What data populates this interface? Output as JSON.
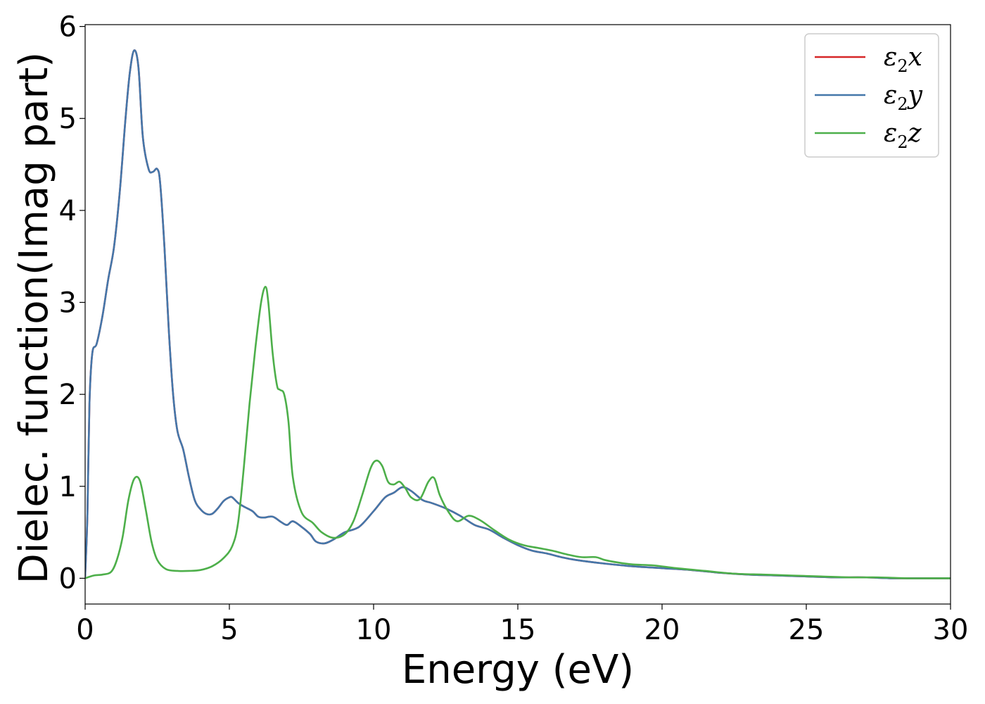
{
  "chart_data": {
    "type": "line",
    "title": "",
    "xlabel": "Energy (eV)",
    "ylabel": "Dielec. function(Imag part)",
    "xlim": [
      0,
      30
    ],
    "ylim": [
      -0.28,
      6.02
    ],
    "xticks": [
      0,
      5,
      10,
      15,
      20,
      25,
      30
    ],
    "yticks": [
      0,
      1,
      2,
      3,
      4,
      5,
      6
    ],
    "grid": false,
    "legend_position": "top-right",
    "series": [
      {
        "name": "ε₂x",
        "legend_base": "ε",
        "legend_sub": "2",
        "legend_var": "x",
        "color": "#d62728",
        "x": [
          0,
          0.08,
          0.15,
          0.25,
          0.4,
          0.6,
          0.8,
          1.0,
          1.2,
          1.4,
          1.55,
          1.7,
          1.85,
          2.0,
          2.2,
          2.35,
          2.5,
          2.6,
          2.75,
          2.9,
          3.05,
          3.2,
          3.4,
          3.6,
          3.8,
          4.0,
          4.2,
          4.4,
          4.6,
          4.8,
          5.0,
          5.1,
          5.3,
          5.5,
          5.8,
          6.0,
          6.2,
          6.5,
          6.8,
          7.0,
          7.2,
          7.5,
          7.8,
          8.0,
          8.3,
          8.6,
          9.0,
          9.5,
          10.0,
          10.4,
          10.7,
          11.0,
          11.3,
          11.7,
          12.0,
          12.5,
          13.0,
          13.5,
          14.0,
          14.5,
          15.0,
          15.5,
          16.0,
          16.5,
          17.0,
          18.0,
          19.0,
          20.0,
          21.0,
          22.0,
          23.0,
          24.0,
          25.0,
          26.0,
          27.0,
          28.0,
          29.0,
          30.0
        ],
        "y": [
          0.02,
          0.7,
          1.9,
          2.45,
          2.55,
          2.85,
          3.25,
          3.6,
          4.2,
          5.0,
          5.5,
          5.74,
          5.55,
          4.8,
          4.45,
          4.42,
          4.45,
          4.3,
          3.6,
          2.7,
          2.0,
          1.6,
          1.4,
          1.1,
          0.85,
          0.75,
          0.7,
          0.7,
          0.76,
          0.84,
          0.88,
          0.88,
          0.82,
          0.78,
          0.73,
          0.67,
          0.66,
          0.67,
          0.61,
          0.58,
          0.62,
          0.56,
          0.48,
          0.4,
          0.38,
          0.42,
          0.5,
          0.56,
          0.73,
          0.88,
          0.93,
          0.99,
          0.95,
          0.85,
          0.82,
          0.76,
          0.68,
          0.58,
          0.53,
          0.44,
          0.36,
          0.3,
          0.27,
          0.23,
          0.2,
          0.16,
          0.13,
          0.11,
          0.09,
          0.06,
          0.04,
          0.03,
          0.02,
          0.01,
          0.01,
          0.0,
          0.0,
          0.0
        ]
      },
      {
        "name": "ε₂y",
        "legend_base": "ε",
        "legend_sub": "2",
        "legend_var": "y",
        "color": "#4477aa",
        "x": [
          0,
          0.08,
          0.15,
          0.25,
          0.4,
          0.6,
          0.8,
          1.0,
          1.2,
          1.4,
          1.55,
          1.7,
          1.85,
          2.0,
          2.2,
          2.35,
          2.5,
          2.6,
          2.75,
          2.9,
          3.05,
          3.2,
          3.4,
          3.6,
          3.8,
          4.0,
          4.2,
          4.4,
          4.6,
          4.8,
          5.0,
          5.1,
          5.3,
          5.5,
          5.8,
          6.0,
          6.2,
          6.5,
          6.8,
          7.0,
          7.2,
          7.5,
          7.8,
          8.0,
          8.3,
          8.6,
          9.0,
          9.5,
          10.0,
          10.4,
          10.7,
          11.0,
          11.3,
          11.7,
          12.0,
          12.5,
          13.0,
          13.5,
          14.0,
          14.5,
          15.0,
          15.5,
          16.0,
          16.5,
          17.0,
          18.0,
          19.0,
          20.0,
          21.0,
          22.0,
          23.0,
          24.0,
          25.0,
          26.0,
          27.0,
          28.0,
          29.0,
          30.0
        ],
        "y": [
          0.02,
          0.7,
          1.9,
          2.45,
          2.55,
          2.85,
          3.25,
          3.6,
          4.2,
          5.0,
          5.5,
          5.74,
          5.55,
          4.8,
          4.45,
          4.42,
          4.45,
          4.3,
          3.6,
          2.7,
          2.0,
          1.6,
          1.4,
          1.1,
          0.85,
          0.75,
          0.7,
          0.7,
          0.76,
          0.84,
          0.88,
          0.88,
          0.82,
          0.78,
          0.73,
          0.67,
          0.66,
          0.67,
          0.61,
          0.58,
          0.62,
          0.56,
          0.48,
          0.4,
          0.38,
          0.42,
          0.5,
          0.56,
          0.73,
          0.88,
          0.93,
          0.99,
          0.95,
          0.85,
          0.82,
          0.76,
          0.68,
          0.58,
          0.53,
          0.44,
          0.36,
          0.3,
          0.27,
          0.23,
          0.2,
          0.16,
          0.13,
          0.11,
          0.09,
          0.06,
          0.04,
          0.03,
          0.02,
          0.01,
          0.01,
          0.0,
          0.0,
          0.0
        ]
      },
      {
        "name": "ε₂z",
        "legend_base": "ε",
        "legend_sub": "2",
        "legend_var": "z",
        "color": "#4daf4a",
        "x": [
          0,
          0.3,
          0.6,
          0.9,
          1.1,
          1.3,
          1.5,
          1.7,
          1.9,
          2.1,
          2.3,
          2.5,
          2.8,
          3.2,
          3.6,
          4.0,
          4.4,
          4.8,
          5.1,
          5.3,
          5.5,
          5.7,
          5.9,
          6.1,
          6.25,
          6.35,
          6.5,
          6.65,
          6.75,
          6.9,
          7.05,
          7.2,
          7.5,
          7.9,
          8.2,
          8.6,
          9.0,
          9.3,
          9.6,
          9.9,
          10.1,
          10.3,
          10.5,
          10.7,
          10.9,
          11.1,
          11.3,
          11.6,
          11.9,
          12.1,
          12.3,
          12.6,
          12.9,
          13.3,
          13.7,
          14.2,
          14.7,
          15.2,
          15.7,
          16.2,
          16.7,
          17.2,
          17.7,
          18.0,
          18.5,
          19.0,
          19.7,
          20.5,
          21.5,
          22.5,
          23.5,
          24.5,
          25.5,
          26.5,
          27.5,
          28.5,
          29.5,
          30.0
        ],
        "y": [
          0.0,
          0.03,
          0.04,
          0.07,
          0.2,
          0.45,
          0.85,
          1.08,
          1.06,
          0.75,
          0.4,
          0.2,
          0.1,
          0.08,
          0.08,
          0.09,
          0.13,
          0.22,
          0.35,
          0.6,
          1.2,
          1.9,
          2.5,
          3.0,
          3.17,
          3.0,
          2.45,
          2.1,
          2.05,
          2.0,
          1.7,
          1.1,
          0.72,
          0.6,
          0.5,
          0.44,
          0.48,
          0.62,
          0.9,
          1.2,
          1.28,
          1.22,
          1.05,
          1.02,
          1.05,
          0.98,
          0.88,
          0.86,
          1.05,
          1.09,
          0.9,
          0.72,
          0.62,
          0.68,
          0.63,
          0.52,
          0.42,
          0.36,
          0.33,
          0.3,
          0.26,
          0.23,
          0.23,
          0.2,
          0.17,
          0.15,
          0.14,
          0.11,
          0.08,
          0.05,
          0.04,
          0.03,
          0.02,
          0.01,
          0.01,
          0.0,
          0.0,
          0.0
        ]
      }
    ]
  }
}
